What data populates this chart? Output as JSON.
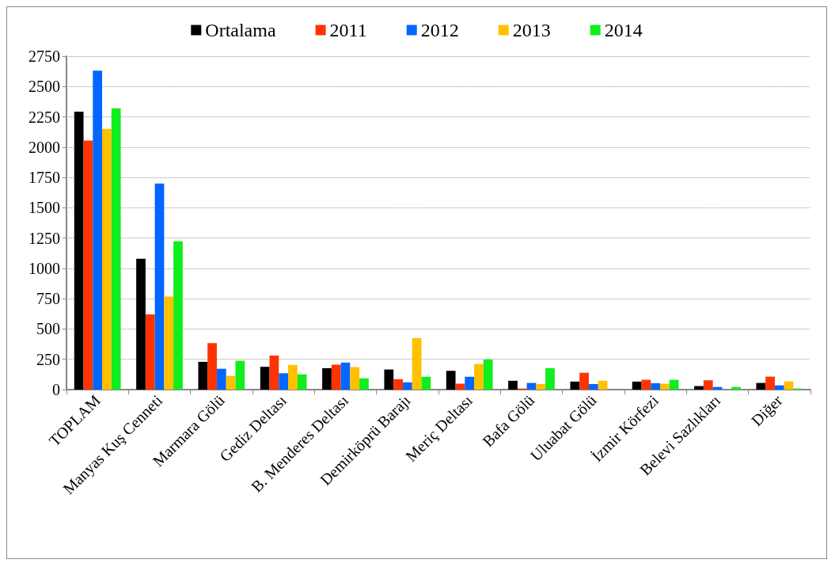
{
  "chart_data": {
    "type": "bar",
    "categories": [
      "TOPLAM",
      "Manyas Kuş Cenneti",
      "Marmara Gölü",
      "Gediz Deltası",
      "B. Menderes Deltası",
      "Demirköprü Barajı",
      "Meriç Deltası",
      "Bafa Gölü",
      "Uluabat Gölü",
      "İzmir Körfezi",
      "Belevi Sazlıkları",
      "Diğer"
    ],
    "series": [
      {
        "name": "Ortalama",
        "color": "#000000",
        "values": [
          2293,
          1079,
          229,
          188,
          177,
          166,
          155,
          73,
          66,
          66,
          29,
          55
        ]
      },
      {
        "name": "2011",
        "color": "#ff3300",
        "values": [
          2055,
          621,
          384,
          281,
          206,
          86,
          49,
          9,
          139,
          81,
          77,
          107
        ]
      },
      {
        "name": "2012",
        "color": "#0066ff",
        "values": [
          2631,
          1700,
          172,
          135,
          223,
          60,
          106,
          55,
          46,
          53,
          22,
          35
        ]
      },
      {
        "name": "2013",
        "color": "#ffc000",
        "values": [
          2151,
          767,
          113,
          204,
          186,
          425,
          212,
          46,
          73,
          48,
          null,
          68
        ]
      },
      {
        "name": "2014",
        "color": "#11ee1d",
        "values": [
          2321,
          1223,
          238,
          126,
          93,
          106,
          248,
          177,
          null,
          81,
          22,
          9
        ]
      }
    ],
    "ylim": [
      0,
      2750
    ],
    "yticks": [
      0,
      250,
      500,
      750,
      1000,
      1250,
      1500,
      1750,
      2000,
      2250,
      2500,
      2750
    ],
    "grid": "y",
    "legend": "top"
  }
}
